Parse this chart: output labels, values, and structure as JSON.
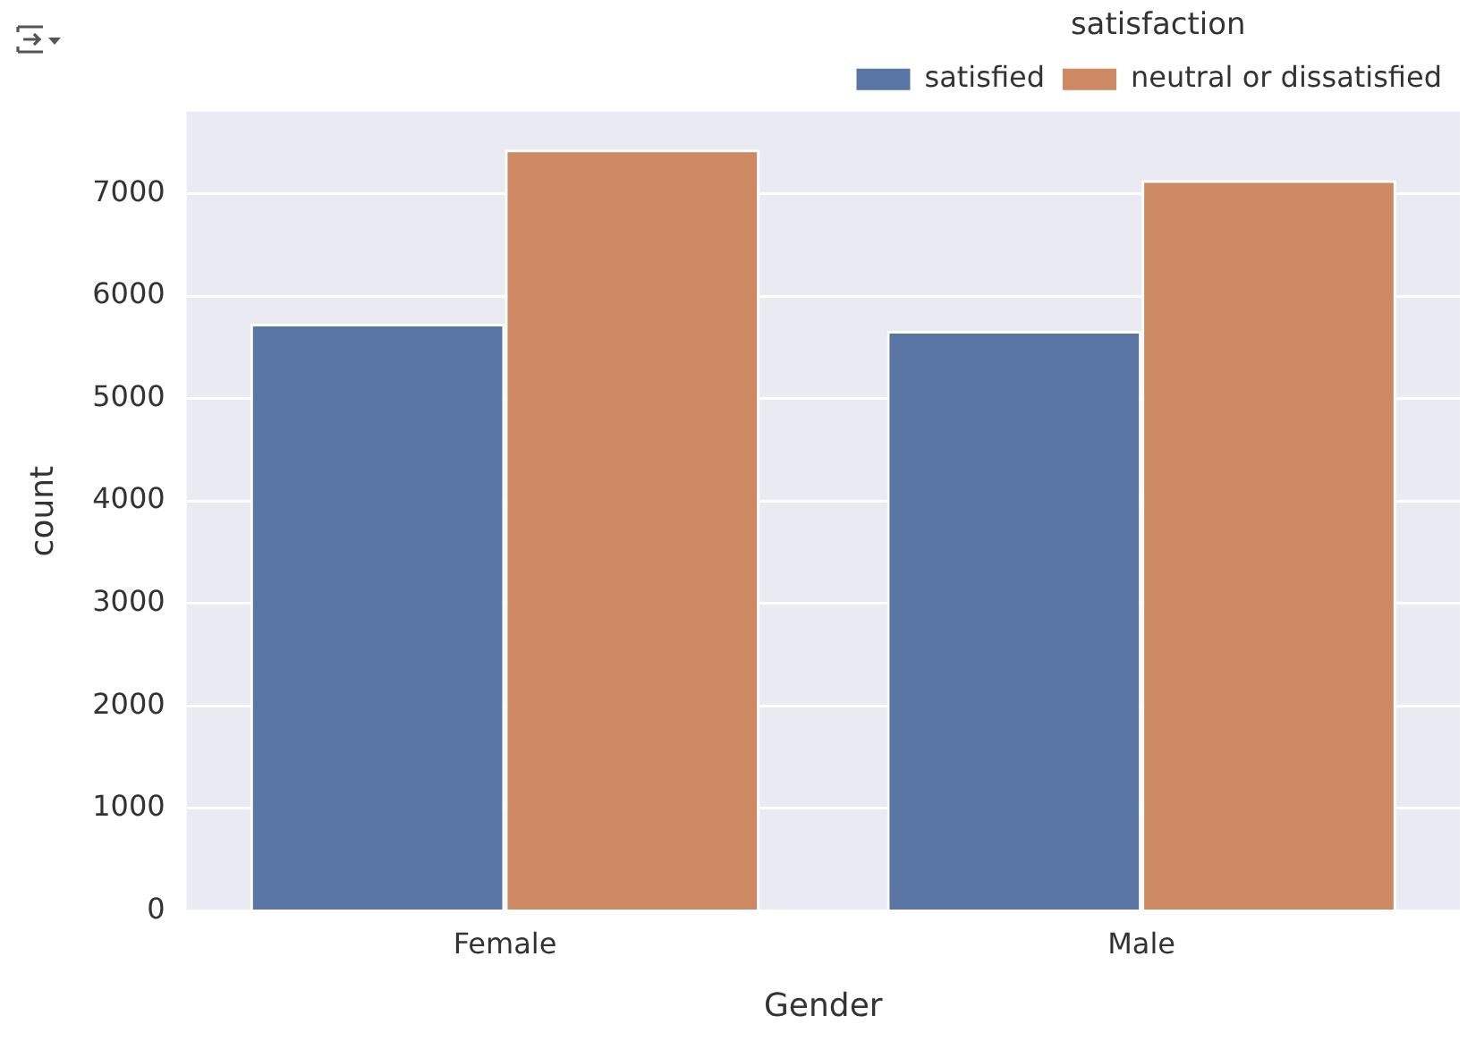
{
  "chart_data": {
    "type": "bar",
    "xlabel": "Gender",
    "ylabel": "count",
    "legend_title": "satisfaction",
    "categories": [
      "Female",
      "Male"
    ],
    "series": [
      {
        "name": "satisfied",
        "color": "#5975a4",
        "values": [
          5730,
          5660
        ]
      },
      {
        "name": "neutral or dissatisfied",
        "color": "#cc8963",
        "values": [
          7430,
          7130
        ]
      }
    ],
    "ylim": [
      0,
      7800
    ],
    "yticks": [
      0,
      1000,
      2000,
      3000,
      4000,
      5000,
      6000,
      7000
    ],
    "grid": "y",
    "legend": "top right"
  }
}
